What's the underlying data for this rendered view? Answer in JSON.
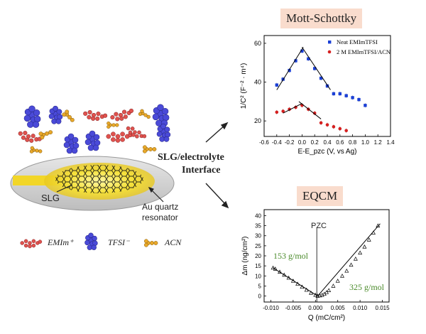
{
  "labels": {
    "mott_title": "Mott-Schottky",
    "eqcm_title": "EQCM",
    "interface_line1": "SLG/electrolyte",
    "interface_line2": "Interface",
    "slg": "SLG",
    "au_line1": "Au quartz",
    "au_line2": "resonator",
    "legend_emim": "EMIm⁺",
    "legend_tfsi": "TFSI⁻",
    "legend_acn": "ACN",
    "pzc": "PZC",
    "mass_low": "153 g/mol",
    "mass_high": "325 g/mol"
  },
  "colors": {
    "emim": "#e0524e",
    "tfsi": "#4a4ad8",
    "acn": "#e8a82a",
    "title_bg": "#f9dccd",
    "neat_series": "#1a3fd6",
    "acn_series": "#d62020",
    "mass_text": "#4a8a2a"
  },
  "chart_data": [
    {
      "type": "scatter",
      "title": "Mott-Schottky",
      "xlabel": "E-E_pzc (V, vs Ag)",
      "ylabel": "1/C² (F⁻² · m⁴)",
      "xlim": [
        -0.6,
        1.4
      ],
      "ylim": [
        12,
        64
      ],
      "xticks": [
        "-0.6",
        "-0.4",
        "-0.2",
        "0.0",
        "0.2",
        "0.4",
        "0.6",
        "0.8",
        "1.0",
        "1.2",
        "1.4"
      ],
      "yticks": [
        "20",
        "40",
        "60"
      ],
      "legend_position": "top-right",
      "series": [
        {
          "name": "Neat EMImTFSI",
          "marker": "square",
          "x": [
            -0.4,
            -0.3,
            -0.2,
            -0.1,
            0.0,
            0.1,
            0.2,
            0.3,
            0.4,
            0.5,
            0.6,
            0.7,
            0.8,
            0.9,
            1.0
          ],
          "y": [
            38.5,
            41.5,
            46,
            51,
            56,
            52,
            47,
            42,
            38,
            34,
            34,
            33,
            32,
            31,
            28
          ]
        },
        {
          "name": "2 M EMImTFSI/ACN",
          "marker": "circle",
          "x": [
            -0.4,
            -0.3,
            -0.2,
            -0.1,
            0.0,
            0.1,
            0.2,
            0.3,
            0.4,
            0.5,
            0.6,
            0.7
          ],
          "y": [
            24.5,
            25,
            26,
            27,
            28,
            26,
            24,
            19,
            18,
            17,
            16,
            15
          ]
        }
      ]
    },
    {
      "type": "scatter",
      "title": "EQCM",
      "xlabel": "Q (mC/cm²)",
      "ylabel": "Δm (ng/cm²)",
      "xlim": [
        -0.0115,
        0.0165
      ],
      "ylim": [
        -3,
        43
      ],
      "xticks": [
        "-0.010",
        "-0.005",
        "0.000",
        "0.005",
        "0.010",
        "0.015"
      ],
      "yticks": [
        "0",
        "5",
        "10",
        "15",
        "20",
        "25",
        "30",
        "35",
        "40"
      ],
      "annotations": [
        "PZC",
        "153 g/mol",
        "325 g/mol"
      ],
      "series": [
        {
          "marker": "open-triangle",
          "x": [
            -0.0095,
            -0.009,
            -0.008,
            -0.007,
            -0.006,
            -0.005,
            -0.004,
            -0.003,
            -0.002,
            -0.001,
            0.0,
            0.0005,
            0.001,
            0.0015,
            0.002,
            0.0025,
            0.003,
            0.004,
            0.005,
            0.006,
            0.007,
            0.008,
            0.009,
            0.01,
            0.011,
            0.012,
            0.013,
            0.014
          ],
          "y": [
            14,
            13.5,
            12,
            10.5,
            9,
            7.5,
            6,
            4.5,
            3,
            1.5,
            0.5,
            0,
            0.2,
            0.5,
            1,
            1.8,
            2.8,
            5,
            7.5,
            10,
            12.5,
            15.5,
            18.5,
            21.5,
            24.5,
            28,
            31.5,
            35
          ]
        }
      ],
      "fit_lines": [
        {
          "x": [
            -0.0095,
            0.0005
          ],
          "y": [
            14,
            0
          ]
        },
        {
          "x": [
            0.0005,
            0.0145
          ],
          "y": [
            0,
            36
          ]
        }
      ]
    }
  ]
}
